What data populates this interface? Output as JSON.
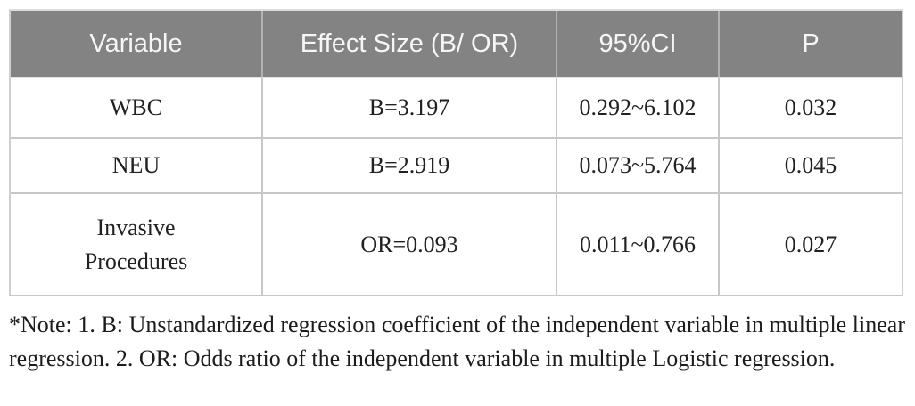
{
  "table": {
    "headers": [
      "Variable",
      "Effect Size (B/ OR)",
      "95%CI",
      "P"
    ],
    "rows": [
      {
        "variable": "WBC",
        "effect_size": "B=3.197",
        "ci": "0.292~6.102",
        "p": "0.032"
      },
      {
        "variable": "NEU",
        "effect_size": "B=2.919",
        "ci": "0.073~5.764",
        "p": "0.045"
      },
      {
        "variable": "Invasive Procedures",
        "effect_size": "OR=0.093",
        "ci": "0.011~0.766",
        "p": "0.027"
      }
    ]
  },
  "note": "*Note: 1. B: Unstandardized regression coefficient of the independent variable in multiple linear regression. 2. OR: Odds ratio of the independent variable in multiple Logistic regression.",
  "colors": {
    "header_background": "#838383",
    "header_text": "#f6f6f6",
    "grid_line": "#c7c7c7",
    "body_text": "#212121"
  }
}
